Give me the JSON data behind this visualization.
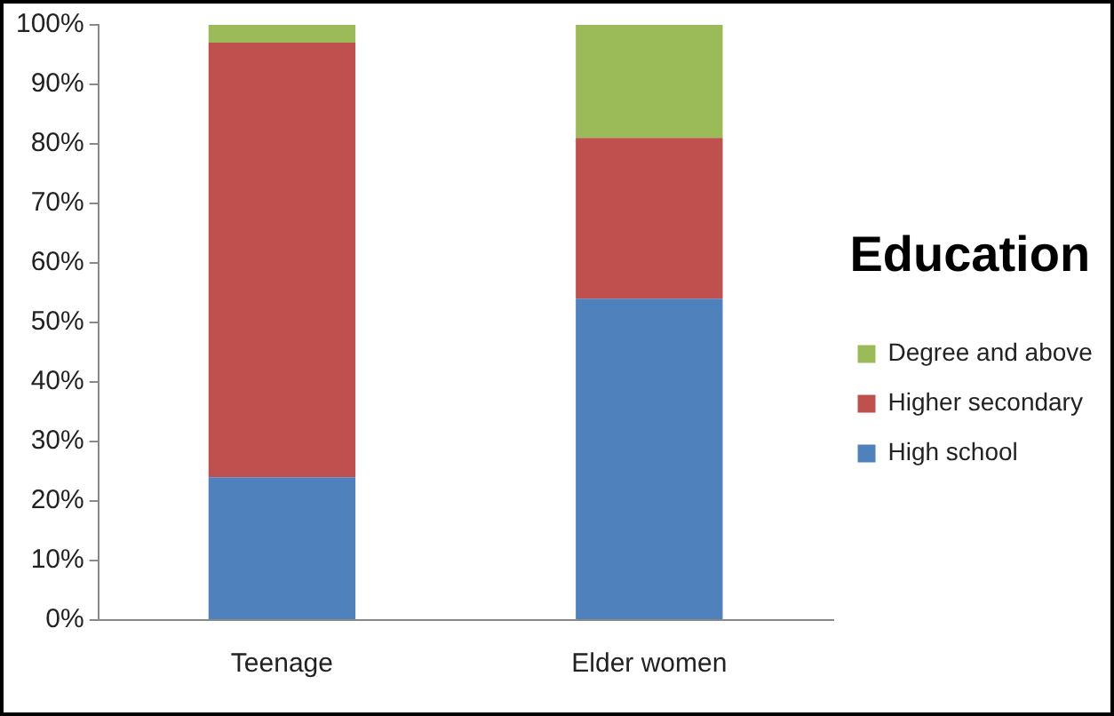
{
  "chart_data": {
    "type": "bar",
    "stacked": true,
    "categories": [
      "Teenage",
      "Elder women"
    ],
    "series": [
      {
        "name": "High school",
        "color": "#4f81bd",
        "values": [
          24,
          54
        ]
      },
      {
        "name": "Higher secondary",
        "color": "#c0504d",
        "values": [
          73,
          27
        ]
      },
      {
        "name": "Degree and above",
        "color": "#9bbb59",
        "values": [
          3,
          19
        ]
      }
    ],
    "legend_title": "Education",
    "legend": "right",
    "grid": false,
    "ylim": [
      0,
      100
    ],
    "yticks": [
      {
        "value": 0,
        "label": "0%"
      },
      {
        "value": 10,
        "label": "10%"
      },
      {
        "value": 20,
        "label": "20%"
      },
      {
        "value": 30,
        "label": "30%"
      },
      {
        "value": 40,
        "label": "40%"
      },
      {
        "value": 50,
        "label": "50%"
      },
      {
        "value": 60,
        "label": "60%"
      },
      {
        "value": 70,
        "label": "70%"
      },
      {
        "value": 80,
        "label": "80%"
      },
      {
        "value": 90,
        "label": "90%"
      },
      {
        "value": 100,
        "label": "100%"
      }
    ]
  }
}
